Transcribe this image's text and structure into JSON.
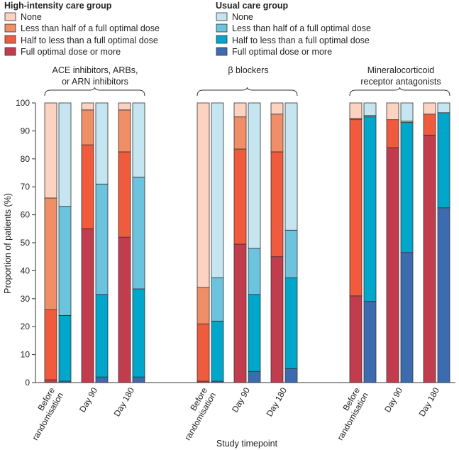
{
  "chart_data": {
    "type": "bar",
    "stacked": true,
    "ylabel": "Proportion of patients (%)",
    "xlabel": "Study timepoint",
    "ylim": [
      0,
      100
    ],
    "yticks": [
      0,
      10,
      20,
      30,
      40,
      50,
      60,
      70,
      80,
      90,
      100
    ],
    "timepoints": [
      "Before randomisation",
      "Day 90",
      "Day 180"
    ],
    "timepoint_lines": [
      [
        "Before",
        "randomisation"
      ],
      [
        "Day 90"
      ],
      [
        "Day 180"
      ]
    ],
    "levels": [
      "Full optimal dose or more",
      "Half to less than a full optimal dose",
      "Less than half of a full optimal dose",
      "None"
    ],
    "legend": {
      "high": {
        "title": "High-intensity care group",
        "items": [
          "None",
          "Less than half of a full optimal dose",
          "Half to less than a full optimal dose",
          "Full optimal dose or more"
        ],
        "colors": [
          "#fcd3c1",
          "#f08e68",
          "#ef5b3c",
          "#c13d4e"
        ]
      },
      "usual": {
        "title": "Usual care group",
        "items": [
          "None",
          "Less than half of a full optimal dose",
          "Half to less than a full optimal dose",
          "Full optimal dose or more"
        ],
        "colors": [
          "#c5e6f0",
          "#6cc3de",
          "#00a7cb",
          "#3c6bb0"
        ]
      }
    },
    "groups": [
      {
        "label_lines": [
          "ACE inhibitors, ARBs,",
          "or ARN inhibitors"
        ],
        "high": [
          [
            1,
            25,
            40,
            34
          ],
          [
            55,
            30,
            12.5,
            2.5
          ],
          [
            52,
            30.5,
            15,
            2.5
          ]
        ],
        "usual": [
          [
            0.5,
            23.5,
            39,
            37
          ],
          [
            2,
            29.5,
            39.5,
            29
          ],
          [
            2,
            31.5,
            40,
            26.5
          ]
        ]
      },
      {
        "label_lines": [
          "β blockers"
        ],
        "high": [
          [
            0.5,
            20.5,
            13,
            66
          ],
          [
            49.5,
            34,
            11.5,
            5
          ],
          [
            45,
            37.5,
            13.5,
            4
          ]
        ],
        "usual": [
          [
            0.5,
            21.5,
            15.5,
            62.5
          ],
          [
            4,
            27.5,
            16.5,
            52
          ],
          [
            5,
            32.5,
            17,
            45.5
          ]
        ]
      },
      {
        "label_lines": [
          "Mineralocorticoid",
          "receptor antagonists"
        ],
        "high": [
          [
            31,
            63,
            0.5,
            5.5
          ],
          [
            84,
            10,
            0,
            6
          ],
          [
            88.5,
            7.5,
            0,
            4
          ]
        ],
        "usual": [
          [
            29,
            66,
            0.5,
            4.5
          ],
          [
            46.5,
            46.5,
            0.5,
            6.5
          ],
          [
            62.5,
            34,
            0,
            3.5
          ]
        ]
      }
    ]
  }
}
